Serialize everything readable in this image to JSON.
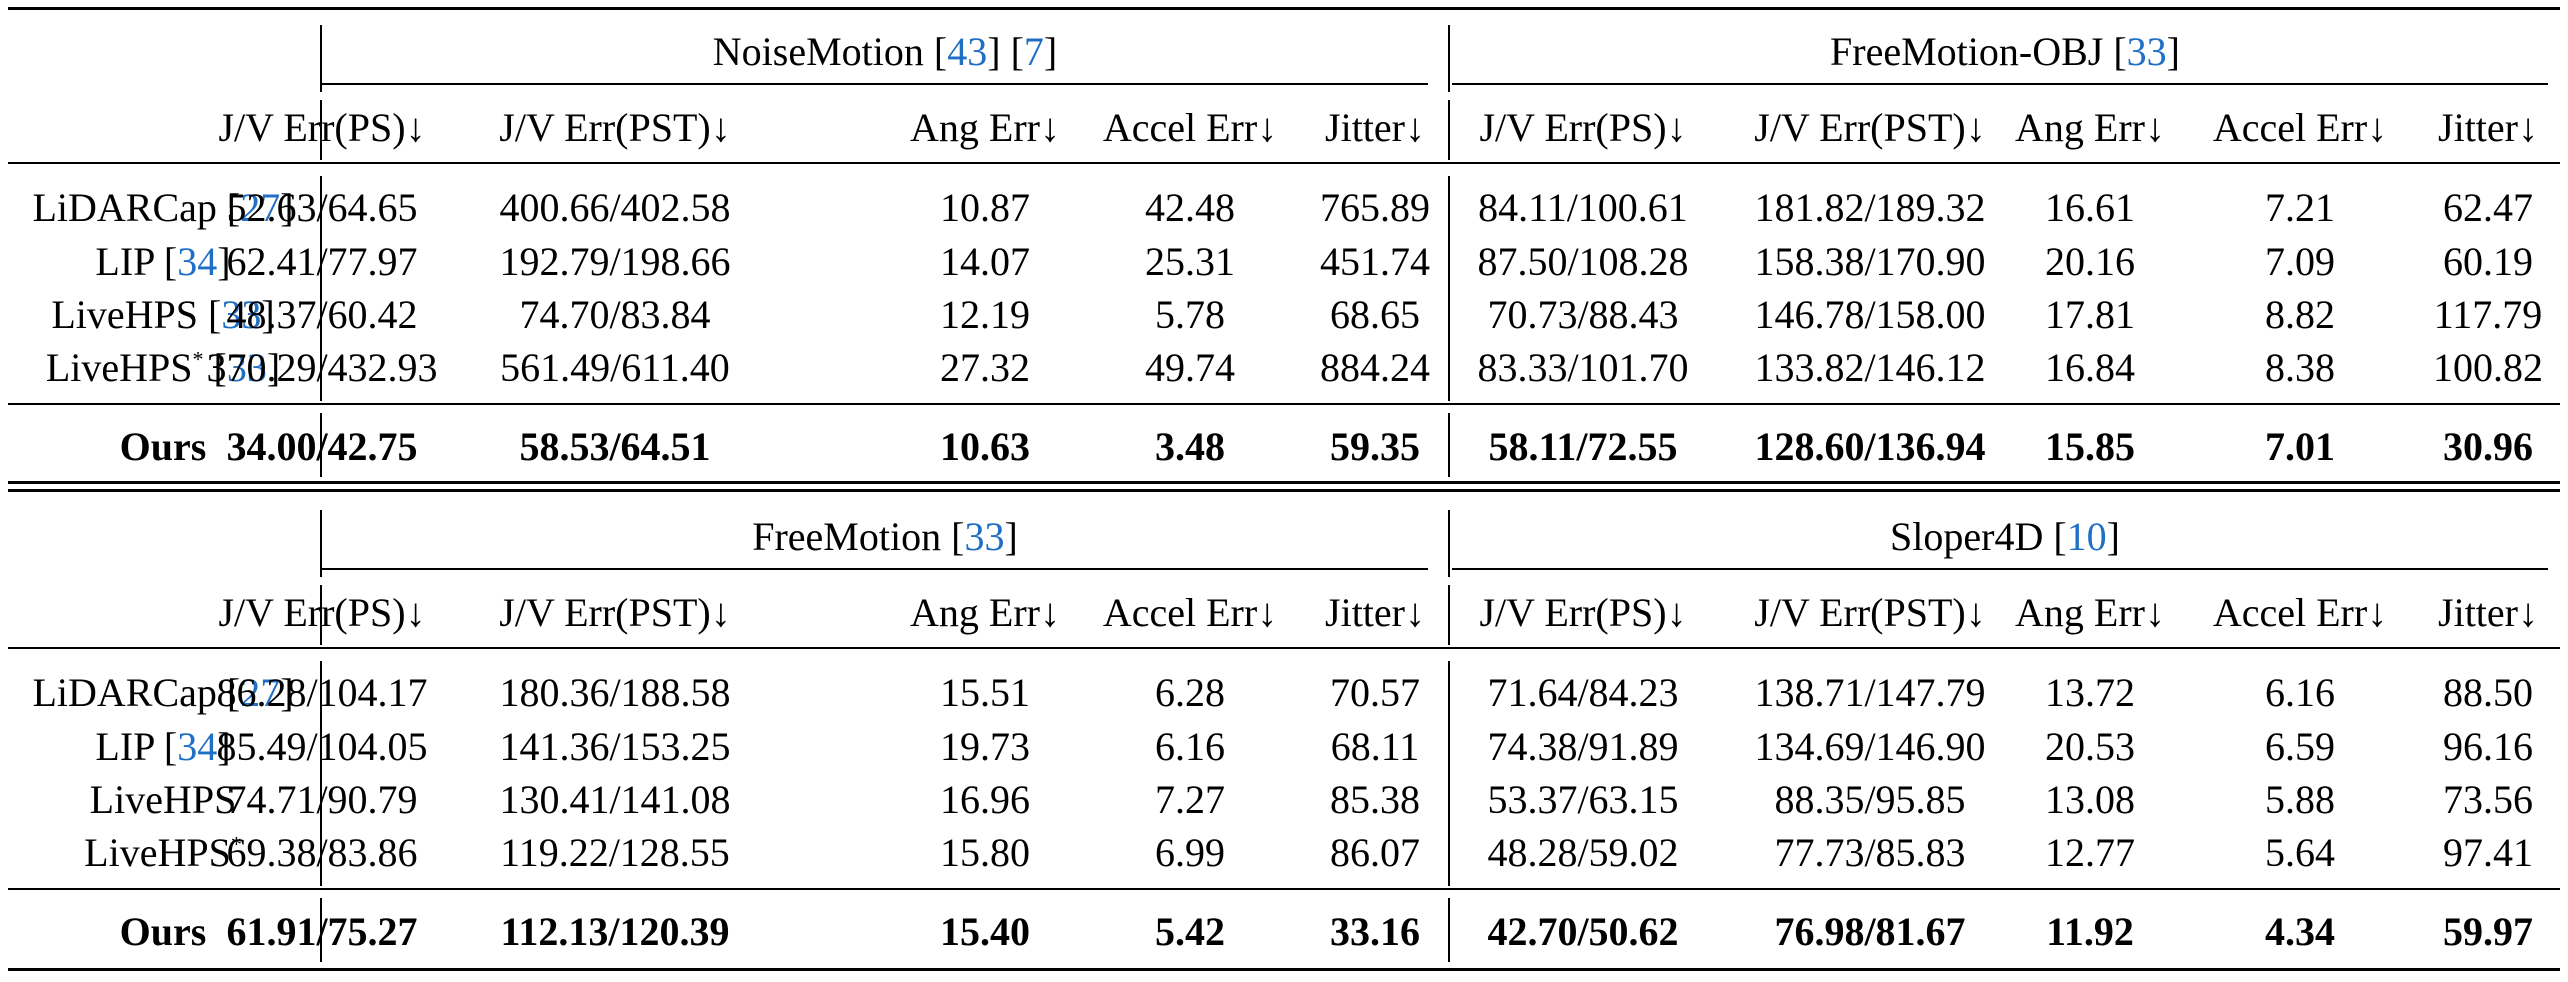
{
  "blocks": [
    {
      "datasets": [
        {
          "name": "NoiseMotion",
          "refs": [
            "43",
            "7"
          ]
        },
        {
          "name": "FreeMotion-OBJ",
          "refs": [
            "33"
          ]
        }
      ],
      "rows": [
        {
          "method": "LiDARCap",
          "star": false,
          "ref": "27",
          "values": [
            "52.63/64.65",
            "400.66/402.58",
            "10.87",
            "42.48",
            "765.89",
            "84.11/100.61",
            "181.82/189.32",
            "16.61",
            "7.21",
            "62.47"
          ]
        },
        {
          "method": "LIP",
          "star": false,
          "ref": "34",
          "values": [
            "62.41/77.97",
            "192.79/198.66",
            "14.07",
            "25.31",
            "451.74",
            "87.50/108.28",
            "158.38/170.90",
            "20.16",
            "7.09",
            "60.19"
          ]
        },
        {
          "method": "LiveHPS",
          "star": false,
          "ref": "33",
          "values": [
            "48.37/60.42",
            "74.70/83.84",
            "12.19",
            "5.78",
            "68.65",
            "70.73/88.43",
            "146.78/158.00",
            "17.81",
            "8.82",
            "117.79"
          ]
        },
        {
          "method": "LiveHPS",
          "star": true,
          "ref": "33",
          "values": [
            "370.29/432.93",
            "561.49/611.40",
            "27.32",
            "49.74",
            "884.24",
            "83.33/101.70",
            "133.82/146.12",
            "16.84",
            "8.38",
            "100.82"
          ]
        }
      ],
      "ours": {
        "method": "Ours",
        "values": [
          "34.00/42.75",
          "58.53/64.51",
          "10.63",
          "3.48",
          "59.35",
          "58.11/72.55",
          "128.60/136.94",
          "15.85",
          "7.01",
          "30.96"
        ]
      }
    },
    {
      "datasets": [
        {
          "name": "FreeMotion",
          "refs": [
            "33"
          ]
        },
        {
          "name": "Sloper4D",
          "refs": [
            "10"
          ]
        }
      ],
      "rows": [
        {
          "method": "LiDARCap",
          "star": false,
          "ref": "27",
          "values": [
            "86.28/104.17",
            "180.36/188.58",
            "15.51",
            "6.28",
            "70.57",
            "71.64/84.23",
            "138.71/147.79",
            "13.72",
            "6.16",
            "88.50"
          ]
        },
        {
          "method": "LIP",
          "star": false,
          "ref": "34",
          "values": [
            "85.49/104.05",
            "141.36/153.25",
            "19.73",
            "6.16",
            "68.11",
            "74.38/91.89",
            "134.69/146.90",
            "20.53",
            "6.59",
            "96.16"
          ]
        },
        {
          "method": "LiveHPS",
          "star": false,
          "ref": "",
          "values": [
            "74.71/90.79",
            "130.41/141.08",
            "16.96",
            "7.27",
            "85.38",
            "53.37/63.15",
            "88.35/95.85",
            "13.08",
            "5.88",
            "73.56"
          ]
        },
        {
          "method": "LiveHPS",
          "star": true,
          "ref": "",
          "values": [
            "69.38/83.86",
            "119.22/128.55",
            "15.80",
            "6.99",
            "86.07",
            "48.28/59.02",
            "77.73/85.83",
            "12.77",
            "5.64",
            "97.41"
          ]
        }
      ],
      "ours": {
        "method": "Ours",
        "values": [
          "61.91/75.27",
          "112.13/120.39",
          "15.40",
          "5.42",
          "33.16",
          "42.70/50.62",
          "76.98/81.67",
          "11.92",
          "4.34",
          "59.97"
        ]
      }
    }
  ],
  "metrics": [
    "J/V Err(PS)↓",
    "J/V Err(PST)↓",
    "Ang Err↓",
    "Accel Err↓",
    "Jitter↓"
  ],
  "colors": {
    "reference": "#1f6fc5",
    "text": "#000000"
  }
}
